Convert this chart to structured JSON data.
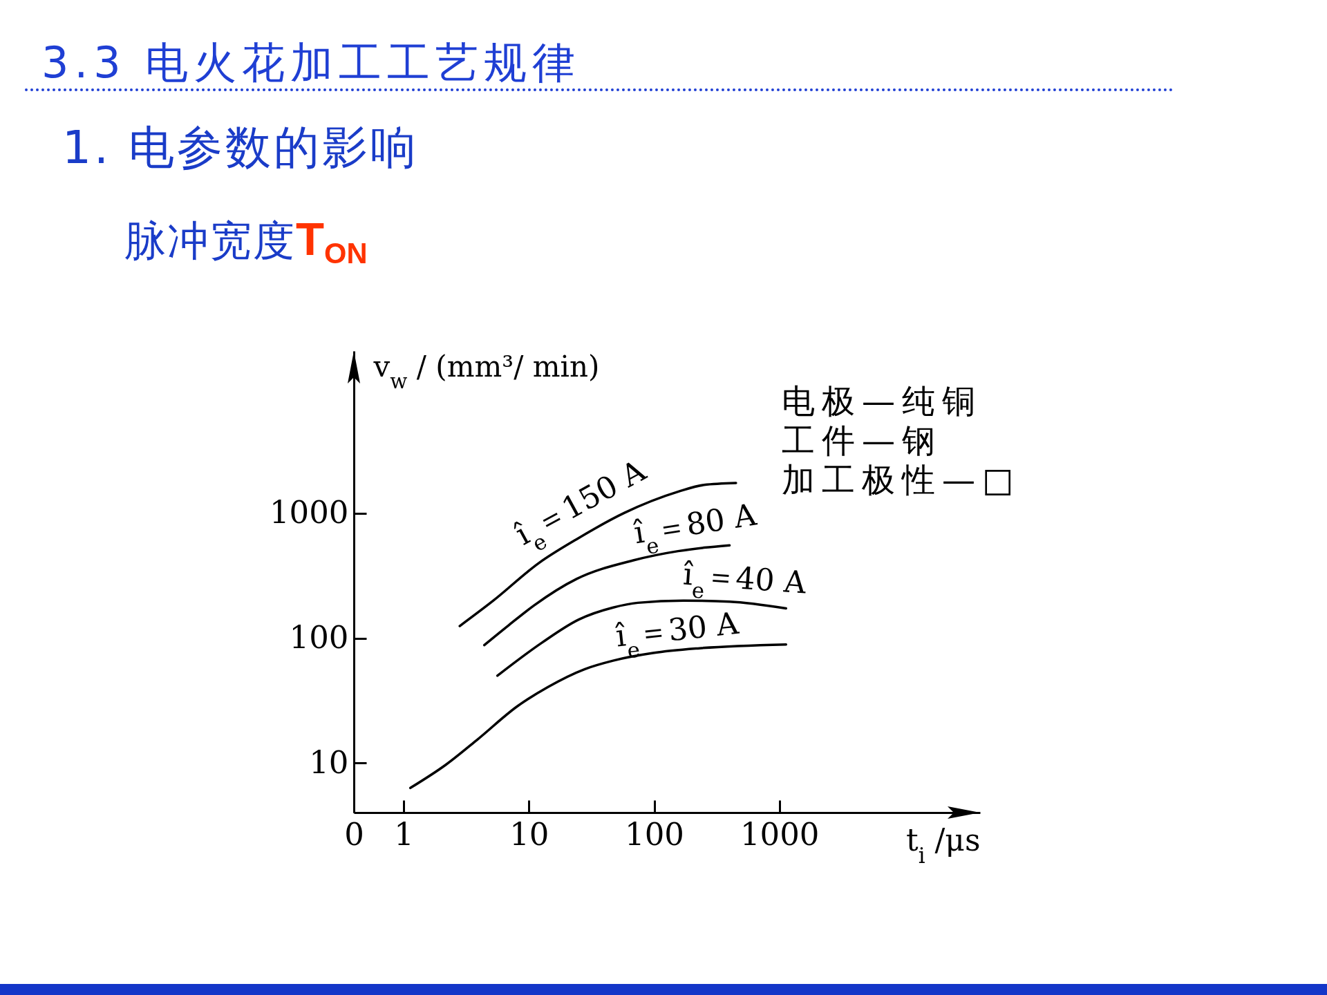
{
  "chart_data": {
    "type": "line",
    "title": "3.3 电火花加工工艺规律",
    "subtitle": "1. 电参数的影响",
    "xlabel": "t$_{i}$ /μs",
    "ylabel": "v$_{w}$ / (mm³/ min)",
    "annotations": [
      "脉冲宽度T$_{ON}$",
      "电极—纯铜",
      "工件—钢",
      "加工极性—□"
    ],
    "log": "xy",
    "xlim": [
      0.4,
      40000
    ],
    "ylim": [
      4,
      20000
    ],
    "xticks": [
      {
        "value": 0.4,
        "label": "0"
      },
      1,
      10,
      100,
      1000
    ],
    "yticks": [
      10,
      100,
      1000
    ],
    "series": [
      {
        "name": "î$_{e}$＝150 A",
        "color": "#000000",
        "x": [
          2.8,
          5.2,
          12,
          24,
          58,
          155,
          250,
          450
        ],
        "values": [
          125,
          200,
          400,
          620,
          1010,
          1490,
          1690,
          1750
        ]
      },
      {
        "name": "î$_{e}$＝80 A",
        "color": "#000000",
        "x": [
          4.4,
          6.9,
          11,
          24,
          68,
          155,
          250,
          400
        ],
        "values": [
          88,
          127,
          183,
          298,
          420,
          498,
          531,
          555
        ]
      },
      {
        "name": "î$_{e}$＝40 A",
        "color": "#000000",
        "x": [
          5.6,
          12.7,
          25,
          47,
          74,
          172,
          400,
          1130
        ],
        "values": [
          50,
          92,
          141,
          176,
          192,
          200,
          196,
          173
        ]
      },
      {
        "name": "î$_{e}$＝30 A",
        "color": "#000000",
        "x": [
          1.13,
          2.18,
          3.85,
          8.1,
          14.2,
          28,
          47,
          98,
          230,
          1130
        ],
        "values": [
          6.3,
          9.7,
          15.3,
          28.5,
          40.6,
          56.5,
          66,
          76,
          83,
          89
        ]
      }
    ]
  }
}
